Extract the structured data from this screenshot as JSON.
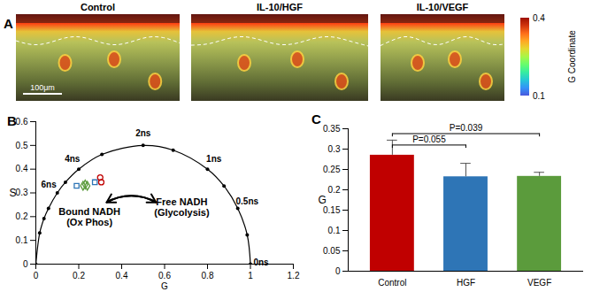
{
  "chart_data": [
    {
      "type": "image",
      "label": "A",
      "titles": [
        "Control",
        "IL-10/HGF",
        "IL-10/VEGF"
      ],
      "scale_bar": "100μm",
      "colorbar": {
        "label": "G Coordinate",
        "range": [
          0.1,
          0.4
        ],
        "ticks": [
          0.4,
          0.1
        ]
      }
    },
    {
      "type": "scatter",
      "label": "B",
      "xlabel": "G",
      "ylabel": "S",
      "xlim": [
        0,
        1.2
      ],
      "ylim": [
        0,
        0.6
      ],
      "xticks": [
        0,
        0.2,
        0.4,
        0.6,
        0.8,
        1,
        1.2
      ],
      "yticks": [
        0,
        0.1,
        0.2,
        0.3,
        0.4,
        0.5,
        0.6
      ],
      "series": [
        {
          "color": "#2e75b6",
          "marker": "square",
          "x": [
            0.19,
            0.275
          ],
          "y": [
            0.33,
            0.345
          ]
        },
        {
          "color": "#5b9b3c",
          "marker": "diamond",
          "x": [
            0.22,
            0.23,
            0.24
          ],
          "y": [
            0.33,
            0.335,
            0.33
          ]
        },
        {
          "color": "#c00000",
          "marker": "circle",
          "x": [
            0.3,
            0.305
          ],
          "y": [
            0.365,
            0.345
          ]
        }
      ],
      "reference_points": {
        "x": [
          0,
          0.018,
          0.038,
          0.059,
          0.1,
          0.138,
          0.2,
          0.308,
          0.5,
          0.64,
          0.8,
          0.877,
          0.941,
          0.985,
          1
        ],
        "y": [
          0,
          0.131,
          0.192,
          0.235,
          0.3,
          0.345,
          0.4,
          0.462,
          0.5,
          0.48,
          0.4,
          0.329,
          0.235,
          0.123,
          0
        ],
        "labels": [
          null,
          null,
          null,
          null,
          "6ns",
          null,
          "4ns",
          null,
          "2ns",
          null,
          "1ns",
          null,
          "0.5ns",
          null,
          "0ns"
        ]
      },
      "annotations": [
        {
          "text": "Bound NADH\n(Ox Phos)",
          "x": 0.25,
          "y": 0.2
        },
        {
          "text": "Free NADH\n(Glycolysis)",
          "x": 0.68,
          "y": 0.24
        }
      ],
      "arrow": {
        "x1": 0.33,
        "y1": 0.26,
        "x2": 0.56,
        "y2": 0.26
      }
    },
    {
      "type": "bar",
      "label": "C",
      "ylabel": "G",
      "categories": [
        "Control",
        "HGF",
        "VEGF"
      ],
      "values": [
        0.285,
        0.232,
        0.233
      ],
      "errors": [
        0.037,
        0.033,
        0.01
      ],
      "colors": [
        "#c00000",
        "#2e75b6",
        "#5b9b3c"
      ],
      "ylim": [
        0,
        0.35
      ],
      "yticks": [
        0,
        0.05,
        0.1,
        0.15,
        0.2,
        0.25,
        0.3,
        0.35
      ],
      "annotations": [
        {
          "from": 0,
          "to": 1,
          "label": "P=0.055",
          "y": 0.31
        },
        {
          "from": 0,
          "to": 2,
          "label": "P=0.039",
          "y": 0.338
        }
      ]
    }
  ]
}
